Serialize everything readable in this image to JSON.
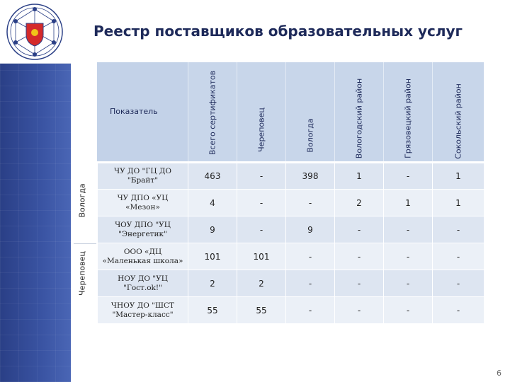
{
  "title": "Реестр поставщиков образовательных услуг",
  "table": {
    "header_first": "Показатель",
    "columns": [
      "Всего сертификатов",
      "Череповец",
      "Вологда",
      "Вологодский район",
      "Грязовецкий район",
      "Сокольский район"
    ],
    "groups": [
      {
        "label": "Вологда"
      },
      {
        "label": "Череповец"
      }
    ],
    "rows": [
      {
        "name_line1": "ЧУ ДО \"ГЦ ДО",
        "name_line2": "\"Брайт\"",
        "values": [
          "463",
          "-",
          "398",
          "1",
          "-",
          "1"
        ]
      },
      {
        "name_line1": "ЧУ ДПО «УЦ",
        "name_line2": "«Мезон»",
        "values": [
          "4",
          "-",
          "-",
          "2",
          "1",
          "1"
        ]
      },
      {
        "name_line1": "ЧОУ ДПО \"УЦ",
        "name_line2": "\"Энергетик\"",
        "values": [
          "9",
          "-",
          "9",
          "-",
          "-",
          "-"
        ]
      },
      {
        "name_line1": "ООО «ДЦ",
        "name_line2": "«Маленькая школа»",
        "values": [
          "101",
          "101",
          "-",
          "-",
          "-",
          "-"
        ]
      },
      {
        "name_line1": "НОУ ДО \"УЦ",
        "name_line2": "\"Гост.ok!\"",
        "values": [
          "2",
          "2",
          "-",
          "-",
          "-",
          "-"
        ]
      },
      {
        "name_line1": "ЧНОУ ДО \"ШСТ",
        "name_line2": "\"Мастер-класс\"",
        "values": [
          "55",
          "55",
          "-",
          "-",
          "-",
          "-"
        ]
      }
    ]
  },
  "page_number": "6",
  "colors": {
    "title": "#1e2a5a",
    "sidebar": "#2a3f86",
    "header_bg": "#c8d6ea",
    "row_a": "#dde5f1",
    "row_b": "#ebf0f7"
  }
}
